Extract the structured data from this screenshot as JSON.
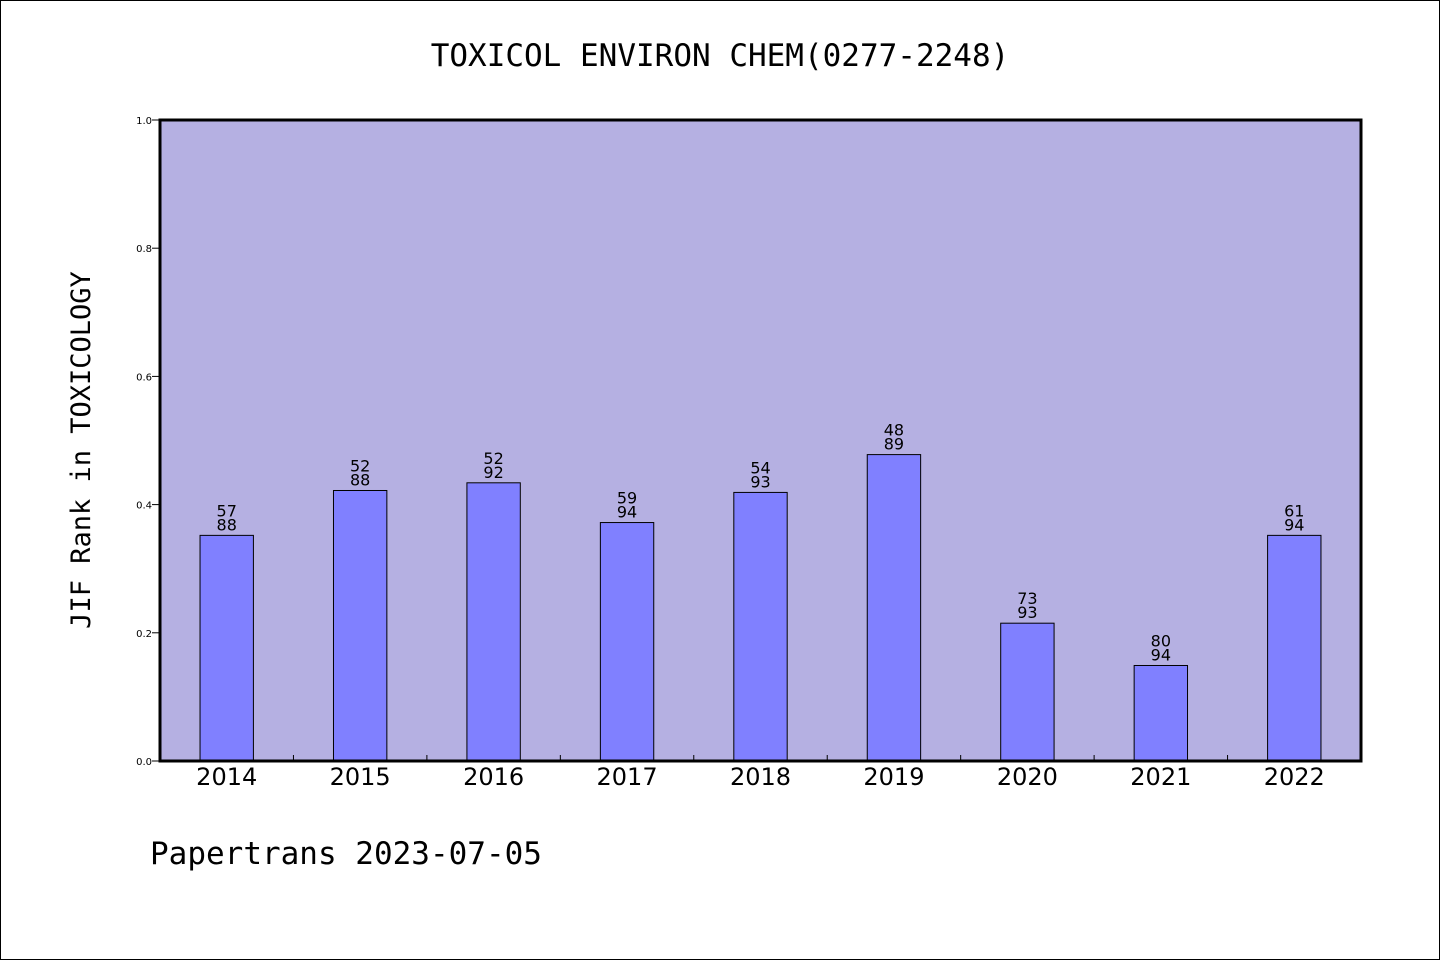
{
  "chart_data": {
    "type": "bar",
    "title": "TOXICOL ENVIRON CHEM(0277-2248)",
    "ylabel": "JIF Rank in TOXICOLOGY",
    "xlabel": "",
    "ylim": [
      0,
      1
    ],
    "yticks": [
      "0.0",
      "0.2",
      "0.4",
      "0.6",
      "0.8",
      "1.0"
    ],
    "categories": [
      "2014",
      "2015",
      "2016",
      "2017",
      "2018",
      "2019",
      "2020",
      "2021",
      "2022"
    ],
    "values": [
      0.352,
      0.422,
      0.434,
      0.372,
      0.419,
      0.478,
      0.215,
      0.149,
      0.352
    ],
    "rank_labels": [
      "57",
      "52",
      "52",
      "59",
      "54",
      "48",
      "73",
      "80",
      "61"
    ],
    "total_labels": [
      "88",
      "88",
      "92",
      "94",
      "93",
      "89",
      "93",
      "94",
      "94"
    ],
    "grid": false,
    "colors": {
      "plot_bg": "#b5b0e2",
      "bar": "#8080ff",
      "border": "#000000"
    }
  },
  "footer": "Papertrans 2023-07-05"
}
